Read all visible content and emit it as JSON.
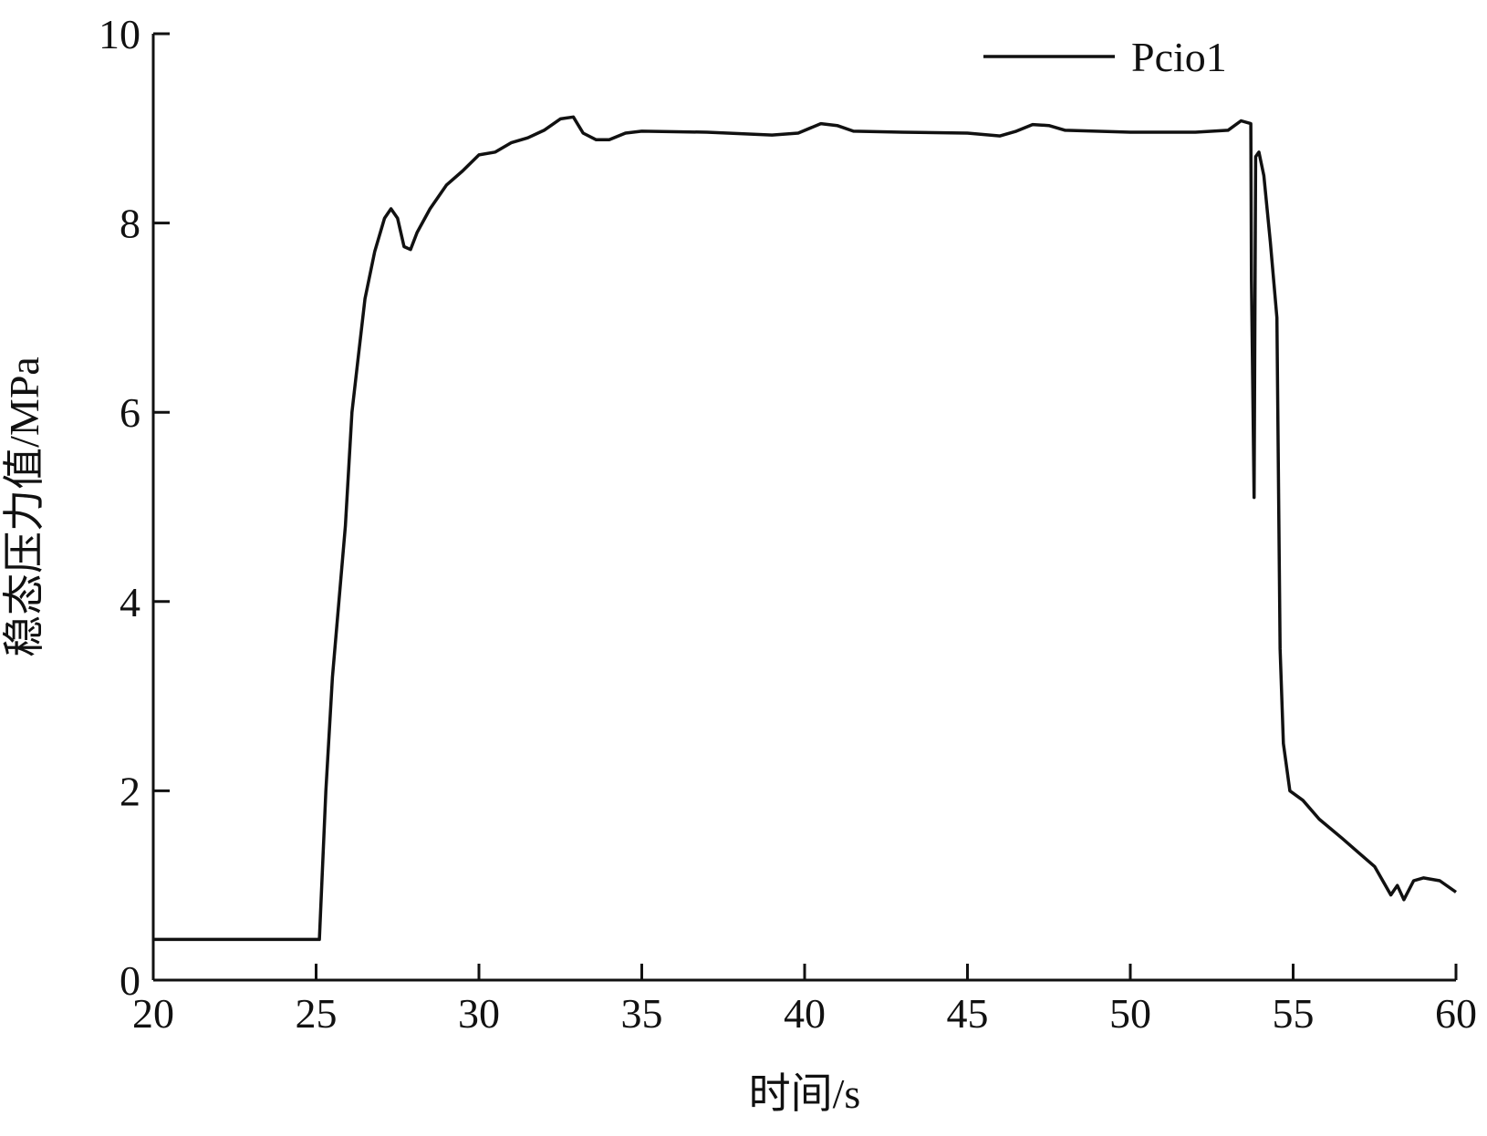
{
  "chart_data": {
    "type": "line",
    "x_label": "时间/s",
    "y_label": "稳态压力值/MPa",
    "xlim": [
      20,
      60
    ],
    "xticks": [
      20,
      25,
      30,
      35,
      40,
      45,
      50,
      55,
      60
    ],
    "ylim": [
      0,
      10
    ],
    "yticks": [
      0,
      2,
      4,
      6,
      8,
      10
    ],
    "legend": "upper right",
    "series": [
      {
        "name": "Pcio1",
        "color": "#111111",
        "x": [
          20,
          22,
          24,
          25.1,
          25.3,
          25.5,
          25.7,
          25.9,
          26.1,
          26.3,
          26.5,
          26.8,
          27.1,
          27.3,
          27.5,
          27.7,
          27.9,
          28.1,
          28.5,
          29,
          29.5,
          30,
          30.5,
          31,
          31.5,
          32,
          32.5,
          32.9,
          33.2,
          33.6,
          34,
          34.5,
          35,
          37,
          39,
          39.8,
          40.5,
          41,
          41.5,
          43,
          45,
          46,
          46.5,
          47,
          47.5,
          48,
          50,
          52,
          53,
          53.4,
          53.7,
          53.72,
          53.8,
          53.85,
          53.95,
          54.1,
          54.3,
          54.5,
          54.6,
          54.7,
          54.9,
          55.3,
          55.8,
          56.5,
          57,
          57.5,
          58,
          58.2,
          58.4,
          58.7,
          59,
          59.5,
          60
        ],
        "values": [
          0.43,
          0.43,
          0.43,
          0.43,
          2,
          3.2,
          4.0,
          4.8,
          6.0,
          6.6,
          7.2,
          7.7,
          8.05,
          8.15,
          8.05,
          7.75,
          7.72,
          7.9,
          8.15,
          8.4,
          8.55,
          8.72,
          8.75,
          8.85,
          8.9,
          8.98,
          9.1,
          9.12,
          8.95,
          8.88,
          8.88,
          8.95,
          8.97,
          8.96,
          8.93,
          8.95,
          9.05,
          9.03,
          8.97,
          8.96,
          8.95,
          8.92,
          8.97,
          9.04,
          9.03,
          8.98,
          8.96,
          8.96,
          8.98,
          9.08,
          9.05,
          7.4,
          5.1,
          8.7,
          8.75,
          8.5,
          7.8,
          7.0,
          3.5,
          2.5,
          2.0,
          1.9,
          1.7,
          1.5,
          1.35,
          1.2,
          0.9,
          1.0,
          0.85,
          1.05,
          1.08,
          1.05,
          0.93
        ]
      }
    ]
  }
}
